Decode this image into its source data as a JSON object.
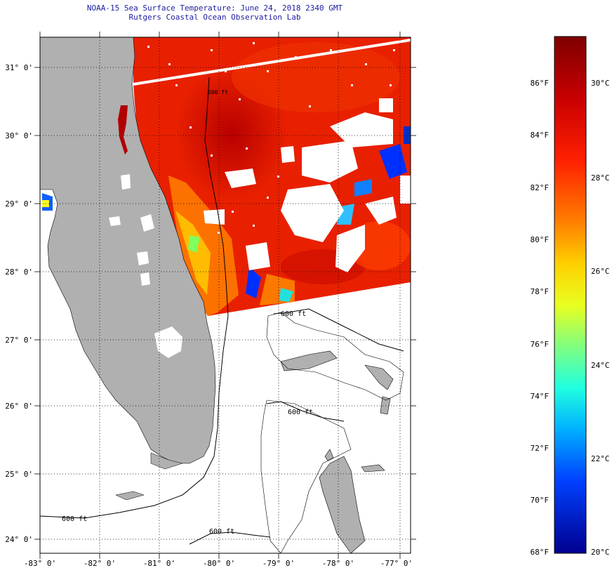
{
  "header": {
    "title": "NOAA-15 Sea Surface Temperature:  June 24, 2018 2340 GMT",
    "subtitle": "Rutgers Coastal Ocean Observation Lab"
  },
  "map": {
    "lon_ticks": [
      "-83° 0'",
      "-82° 0'",
      "-81° 0'",
      "-80° 0'",
      "-79° 0'",
      "-78° 0'",
      "-77° 0'"
    ],
    "lat_ticks": [
      "31° 0'",
      "30° 0'",
      "29° 0'",
      "28° 0'",
      "27° 0'",
      "26° 0'",
      "25° 0'",
      "24° 0'"
    ],
    "contour_labels": [
      "600 ft",
      "600 ft",
      "600 ft",
      "600 ft",
      "600 ft"
    ],
    "land_color": "#b0b0b0",
    "cloud_color": "#ffffff",
    "ocean_color": "#ffffff"
  },
  "colorbar": {
    "fahrenheit_labels": [
      "86°F",
      "84°F",
      "82°F",
      "80°F",
      "78°F",
      "76°F",
      "74°F",
      "72°F",
      "70°F",
      "68°F"
    ],
    "celsius_labels": [
      "30°C",
      "28°C",
      "26°C",
      "24°C",
      "22°C",
      "20°C"
    ],
    "colors": [
      "#00008f",
      "#0000ff",
      "#007fff",
      "#00ffff",
      "#7fff7f",
      "#ffff00",
      "#ff7f00",
      "#ff0000",
      "#7f0000"
    ]
  }
}
